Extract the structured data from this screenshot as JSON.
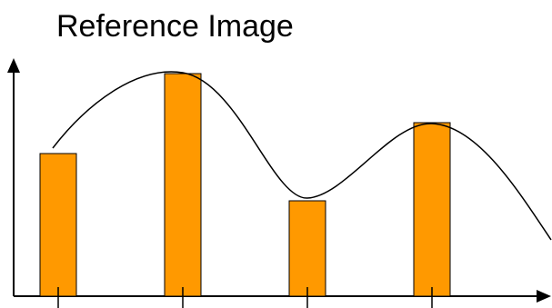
{
  "title": "Reference Image",
  "colors": {
    "bar_fill": "#ff9900",
    "stroke": "#000000",
    "background": "#ffffff"
  },
  "bars": [
    {
      "name": "bar-1",
      "relative_height": 0.64
    },
    {
      "name": "bar-2",
      "relative_height": 1.0
    },
    {
      "name": "bar-3",
      "relative_height": 0.43
    },
    {
      "name": "bar-4",
      "relative_height": 0.78
    }
  ]
}
